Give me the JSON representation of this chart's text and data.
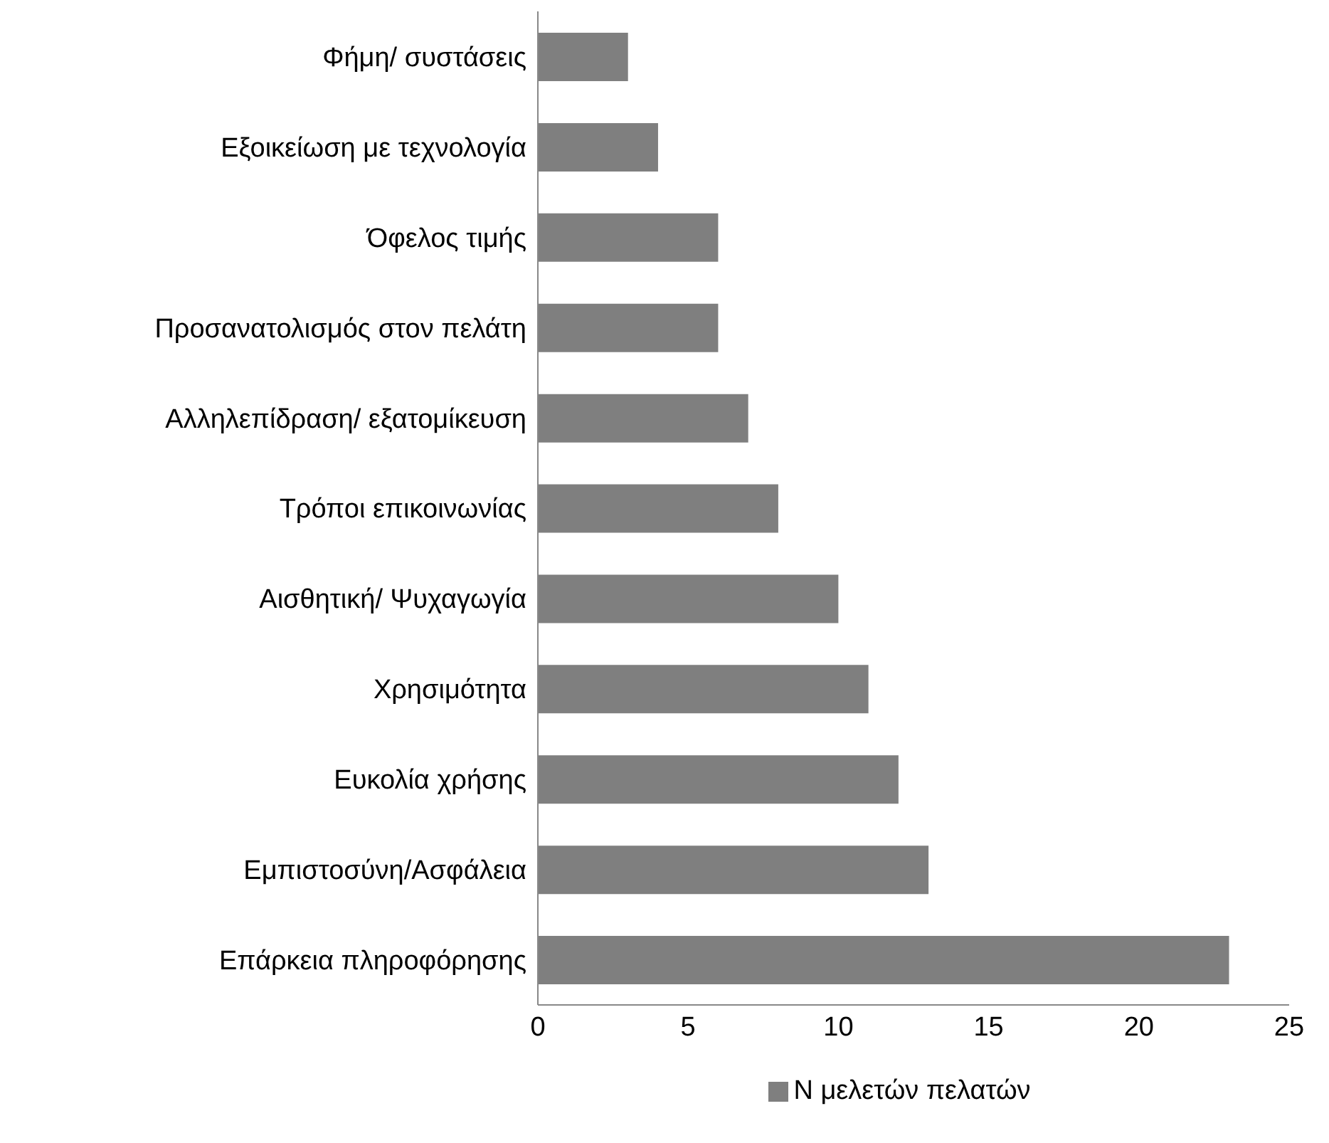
{
  "chart_data": {
    "type": "bar",
    "orientation": "horizontal",
    "categories": [
      "Φήμη/ συστάσεις",
      "Εξοικείωση με τεχνολογία",
      "Όφελος τιμής",
      "Προσανατολισμός στον πελάτη",
      "Αλληλεπίδραση/ εξατομίκευση",
      "Τρόποι επικοινωνίας",
      "Αισθητική/ Ψυχαγωγία",
      "Χρησιμότητα",
      "Ευκολία χρήσης",
      "Εμπιστοσύνη/Ασφάλεια",
      "Επάρκεια πληροφόρησης"
    ],
    "series": [
      {
        "name": "Ν μελετών πελατών",
        "color": "#7f7f7f",
        "values": [
          3,
          4,
          6,
          6,
          7,
          8,
          10,
          11,
          12,
          13,
          23
        ]
      }
    ],
    "xlim": [
      0,
      25
    ],
    "xticks": [
      0,
      5,
      10,
      15,
      20,
      25
    ],
    "legend": "bottom"
  }
}
